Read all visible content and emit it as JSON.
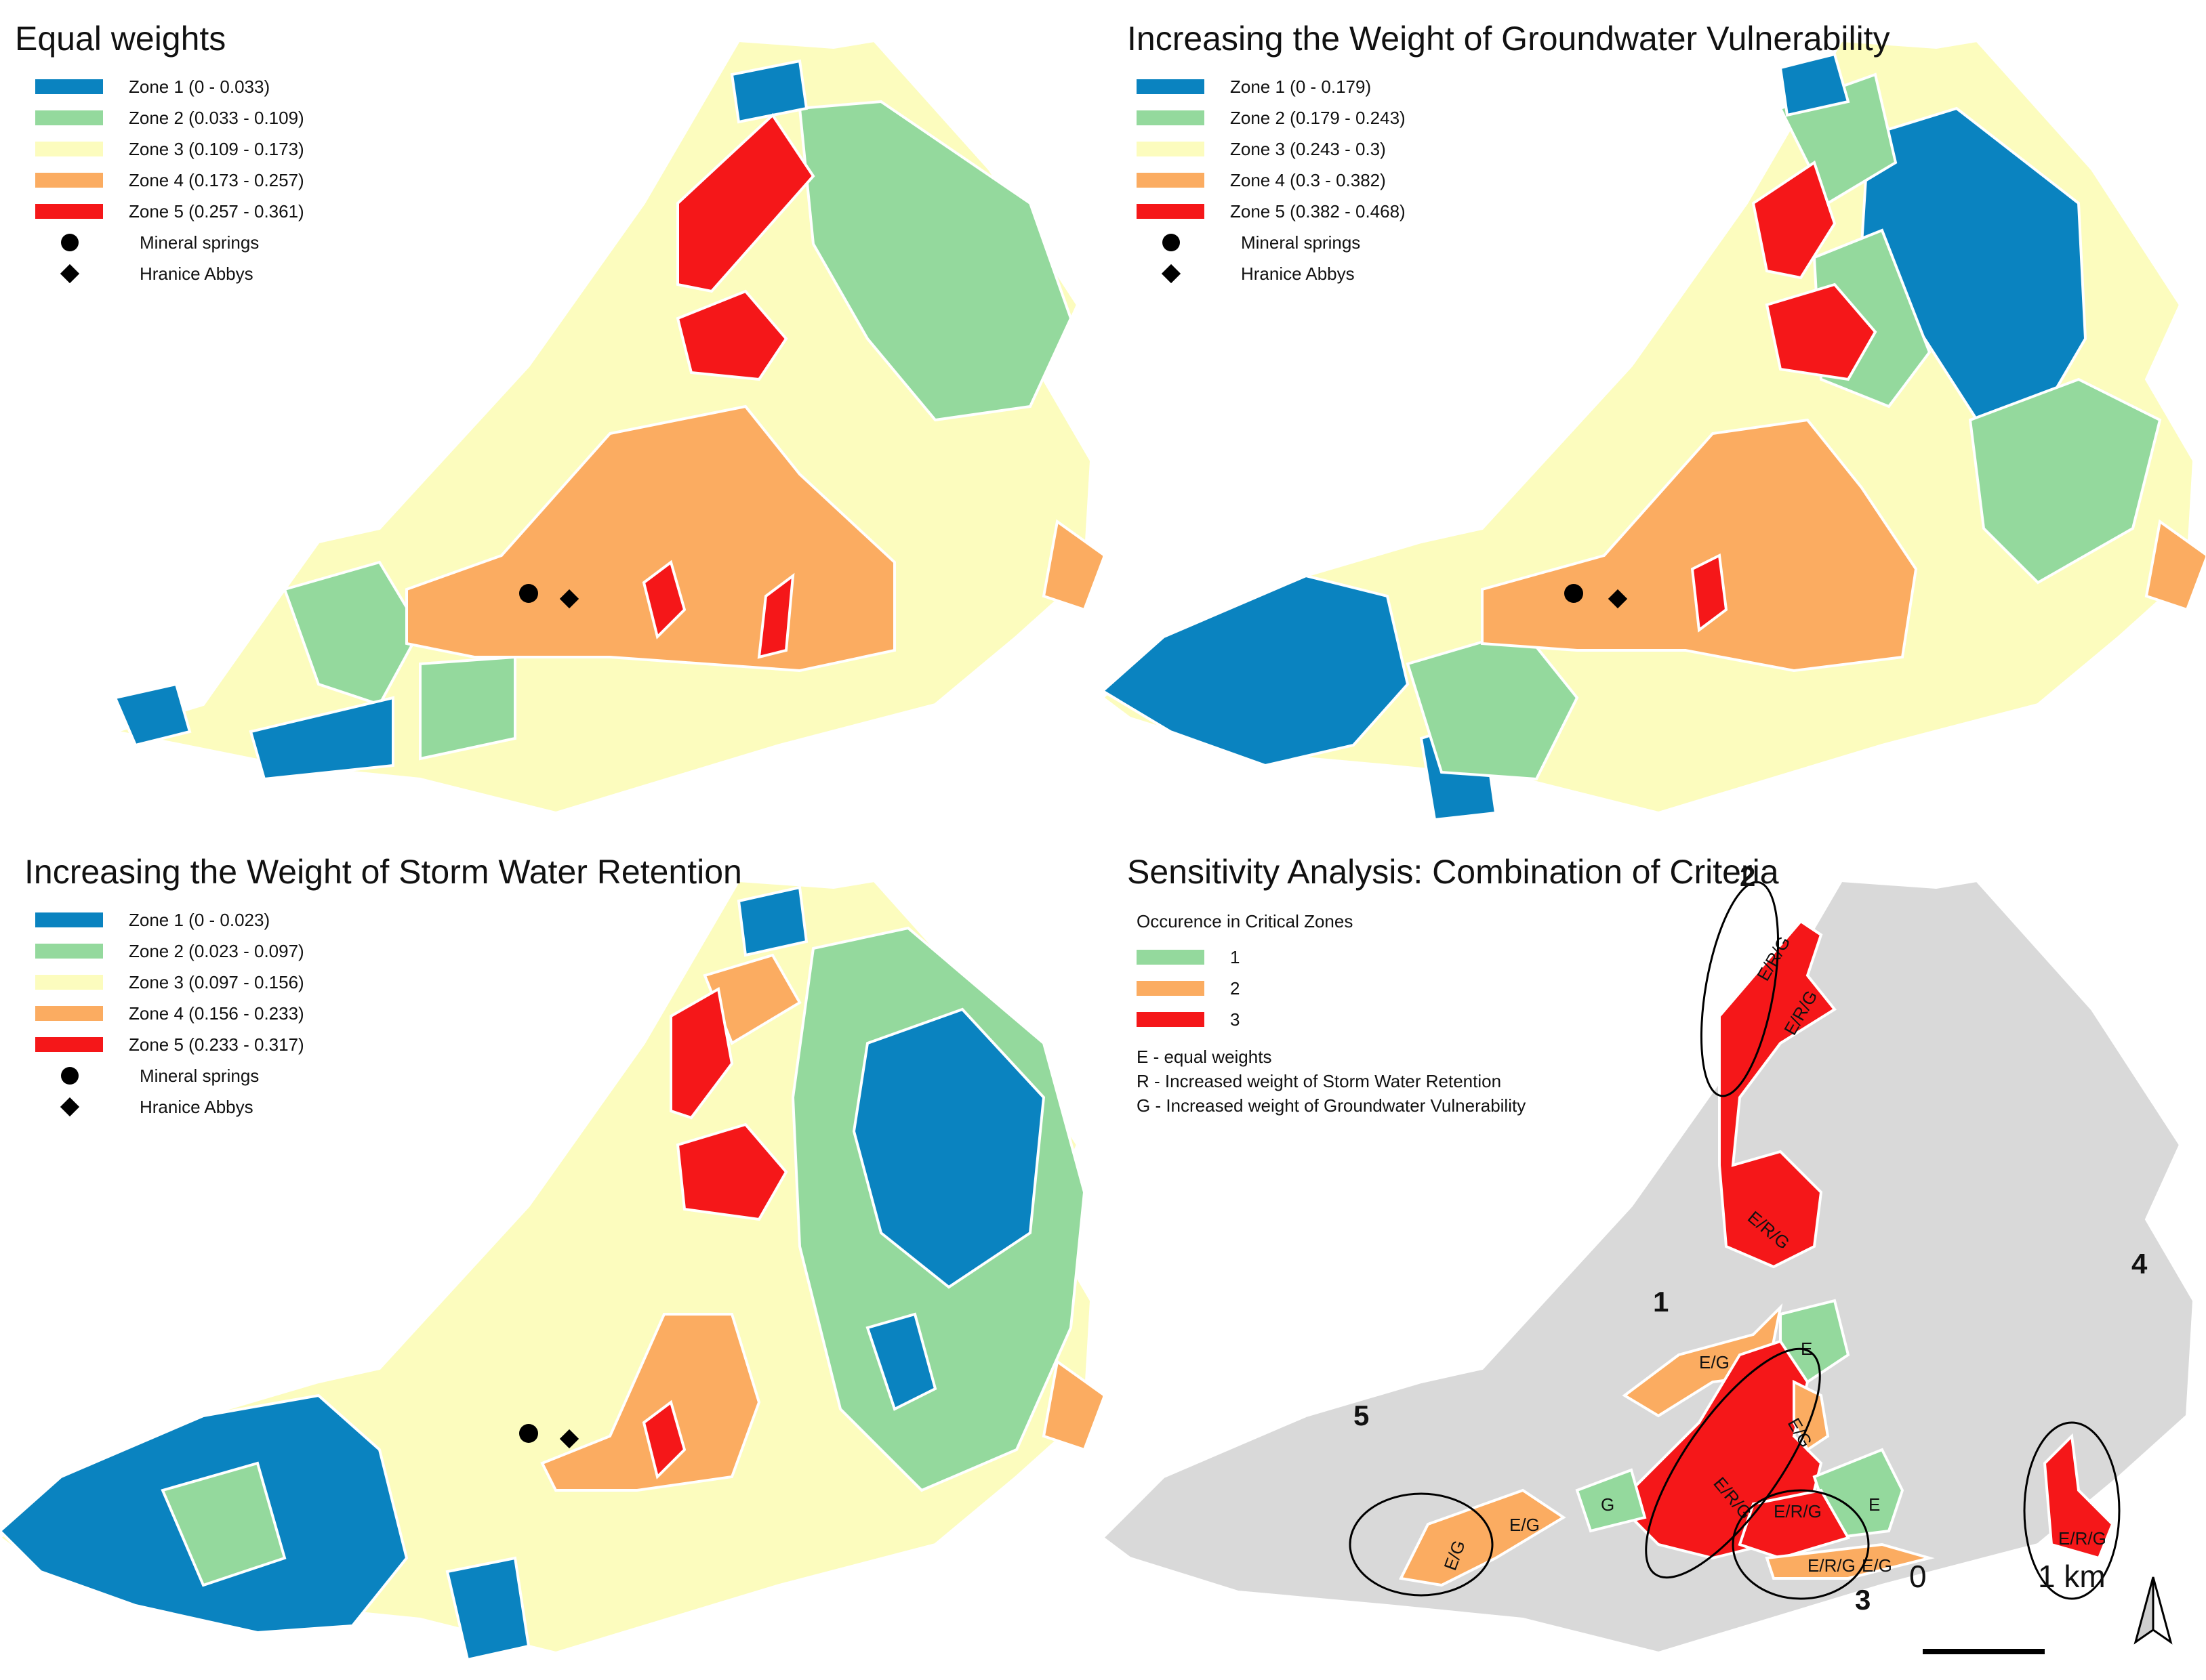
{
  "panels": [
    {
      "title": "Equal weights",
      "legend": [
        {
          "label": "Zone 1 (0 - 0.033)",
          "color": "#0a83c0"
        },
        {
          "label": "Zone 2 (0.033 - 0.109)",
          "color": "#94d99d"
        },
        {
          "label": "Zone 3 (0.109 - 0.173)",
          "color": "#fcfcbe"
        },
        {
          "label": "Zone 4 (0.173 - 0.257)",
          "color": "#fbac61"
        },
        {
          "label": "Zone 5 (0.257 - 0.361)",
          "color": "#f51719"
        }
      ],
      "points": [
        "Mineral springs",
        "Hranice Abbys"
      ]
    },
    {
      "title": "Increasing the Weight of Groundwater Vulnerability",
      "legend": [
        {
          "label": "Zone 1 (0 - 0.179)",
          "color": "#0a83c0"
        },
        {
          "label": "Zone 2 (0.179 - 0.243)",
          "color": "#94d99d"
        },
        {
          "label": "Zone 3 (0.243 - 0.3)",
          "color": "#fcfcbe"
        },
        {
          "label": "Zone 4 (0.3 - 0.382)",
          "color": "#fbac61"
        },
        {
          "label": "Zone 5 (0.382 - 0.468)",
          "color": "#f51719"
        }
      ],
      "points": [
        "Mineral springs",
        "Hranice Abbys"
      ]
    },
    {
      "title": "Increasing the Weight of Storm Water Retention",
      "legend": [
        {
          "label": "Zone 1 (0 - 0.023)",
          "color": "#0a83c0"
        },
        {
          "label": "Zone 2 (0.023 - 0.097)",
          "color": "#94d99d"
        },
        {
          "label": "Zone 3 (0.097 - 0.156)",
          "color": "#fcfcbe"
        },
        {
          "label": "Zone 4 (0.156 - 0.233)",
          "color": "#fbac61"
        },
        {
          "label": "Zone 5 (0.233 - 0.317)",
          "color": "#f51719"
        }
      ],
      "points": [
        "Mineral springs",
        "Hranice Abbys"
      ]
    },
    {
      "title": "Sensitivity Analysis: Combination of Criteria",
      "legend_title": "Occurence in Critical Zones",
      "legend": [
        {
          "label": "1",
          "color": "#94d99d"
        },
        {
          "label": "2",
          "color": "#fbac61"
        },
        {
          "label": "3",
          "color": "#f51719"
        }
      ],
      "notes": [
        "E - equal weights",
        "R - Increased weight of Storm Water Retention",
        "G - Increased weight of Groundwater Vulnerability"
      ],
      "callouts": [
        "1",
        "2",
        "3",
        "4",
        "5"
      ],
      "region_labels": [
        "E/R/G",
        "E/G",
        "E",
        "G"
      ],
      "background_color": "#d9d9d9"
    }
  ],
  "scale_bar": {
    "start": "0",
    "end": "1 km"
  },
  "north_arrow": "north-arrow-icon"
}
